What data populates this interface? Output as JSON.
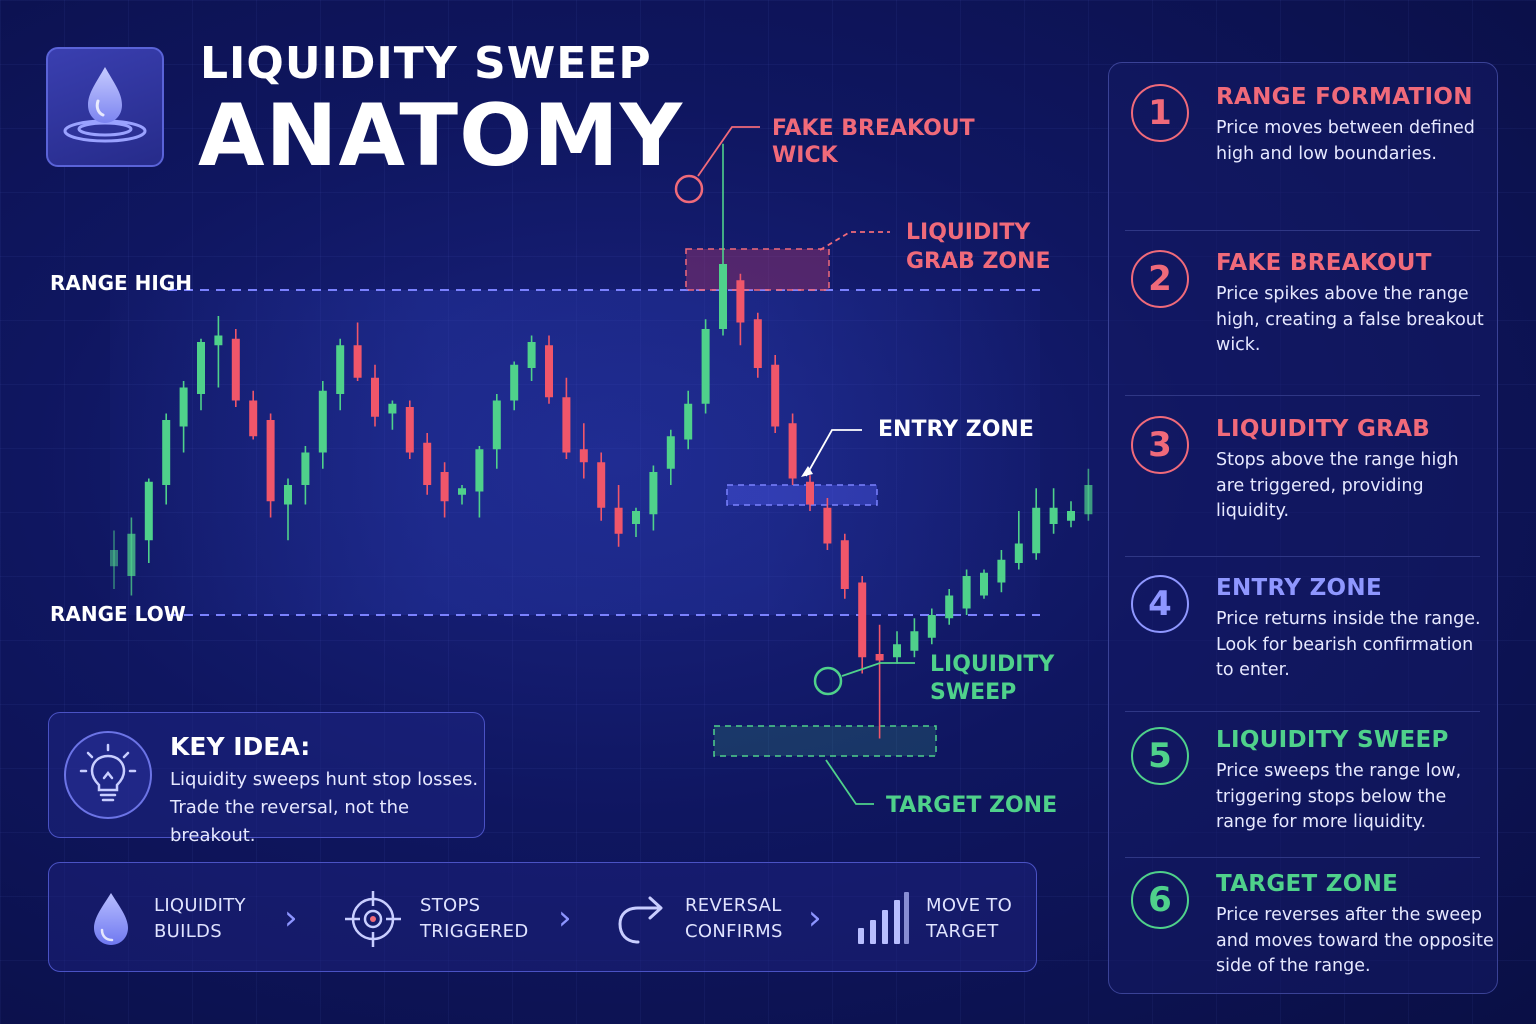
{
  "header": {
    "title_line1": "LIQUIDITY SWEEP",
    "title_line2": "ANATOMY",
    "logo_icon": "water-drop-icon"
  },
  "chart_data": {
    "type": "candlestick",
    "title": "",
    "xlabel": "",
    "ylabel": "",
    "levels": {
      "range_high": "RANGE HIGH",
      "range_low": "RANGE LOW"
    },
    "annotations": {
      "fake_breakout": [
        "FAKE BREAKOUT",
        "WICK"
      ],
      "grab_zone": [
        "LIQUIDITY",
        "GRAB ZONE"
      ],
      "entry_zone": [
        "ENTRY ZONE"
      ],
      "sweep": [
        "LIQUIDITY",
        "SWEEP"
      ],
      "target_zone": [
        "TARGET ZONE"
      ]
    },
    "candles_note": "values in price units where range low = 0 and range high = 100",
    "candles": [
      {
        "o": 15,
        "h": 26,
        "l": 8,
        "c": 20
      },
      {
        "o": 12,
        "h": 30,
        "l": 6,
        "c": 25
      },
      {
        "o": 23,
        "h": 42,
        "l": 16,
        "c": 41
      },
      {
        "o": 40,
        "h": 62,
        "l": 34,
        "c": 60
      },
      {
        "o": 58,
        "h": 72,
        "l": 50,
        "c": 70
      },
      {
        "o": 68,
        "h": 85,
        "l": 63,
        "c": 84
      },
      {
        "o": 83,
        "h": 92,
        "l": 70,
        "c": 86
      },
      {
        "o": 85,
        "h": 88,
        "l": 64,
        "c": 66
      },
      {
        "o": 66,
        "h": 69,
        "l": 54,
        "c": 55
      },
      {
        "o": 60,
        "h": 62,
        "l": 30,
        "c": 35
      },
      {
        "o": 34,
        "h": 42,
        "l": 23,
        "c": 40
      },
      {
        "o": 40,
        "h": 52,
        "l": 34,
        "c": 50
      },
      {
        "o": 50,
        "h": 72,
        "l": 45,
        "c": 69
      },
      {
        "o": 68,
        "h": 85,
        "l": 63,
        "c": 83
      },
      {
        "o": 83,
        "h": 90,
        "l": 72,
        "c": 73
      },
      {
        "o": 73,
        "h": 77,
        "l": 58,
        "c": 61
      },
      {
        "o": 62,
        "h": 66,
        "l": 57,
        "c": 65
      },
      {
        "o": 64,
        "h": 66,
        "l": 48,
        "c": 50
      },
      {
        "o": 53,
        "h": 56,
        "l": 37,
        "c": 40
      },
      {
        "o": 44,
        "h": 47,
        "l": 30,
        "c": 35
      },
      {
        "o": 37,
        "h": 40,
        "l": 34,
        "c": 39
      },
      {
        "o": 38,
        "h": 52,
        "l": 30,
        "c": 51
      },
      {
        "o": 51,
        "h": 68,
        "l": 45,
        "c": 66
      },
      {
        "o": 66,
        "h": 78,
        "l": 63,
        "c": 77
      },
      {
        "o": 76,
        "h": 86,
        "l": 72,
        "c": 84
      },
      {
        "o": 83,
        "h": 86,
        "l": 65,
        "c": 67
      },
      {
        "o": 67,
        "h": 73,
        "l": 48,
        "c": 50
      },
      {
        "o": 51,
        "h": 59,
        "l": 42,
        "c": 47
      },
      {
        "o": 47,
        "h": 50,
        "l": 29,
        "c": 33
      },
      {
        "o": 33,
        "h": 40,
        "l": 21,
        "c": 25
      },
      {
        "o": 28,
        "h": 33,
        "l": 24,
        "c": 32
      },
      {
        "o": 31,
        "h": 46,
        "l": 26,
        "c": 44
      },
      {
        "o": 45,
        "h": 57,
        "l": 40,
        "c": 55
      },
      {
        "o": 54,
        "h": 69,
        "l": 51,
        "c": 65
      },
      {
        "o": 65,
        "h": 91,
        "l": 62,
        "c": 88
      },
      {
        "o": 88,
        "h": 145,
        "l": 86,
        "c": 108
      },
      {
        "o": 103,
        "h": 105,
        "l": 83,
        "c": 90
      },
      {
        "o": 91,
        "h": 93,
        "l": 73,
        "c": 76
      },
      {
        "o": 77,
        "h": 80,
        "l": 56,
        "c": 58
      },
      {
        "o": 59,
        "h": 62,
        "l": 40,
        "c": 42
      },
      {
        "o": 41,
        "h": 43,
        "l": 32,
        "c": 34
      },
      {
        "o": 33,
        "h": 36,
        "l": 20,
        "c": 22
      },
      {
        "o": 23,
        "h": 25,
        "l": 5,
        "c": 8
      },
      {
        "o": 10,
        "h": 12,
        "l": -18,
        "c": -13
      },
      {
        "o": -12,
        "h": -3,
        "l": -38,
        "c": -14
      },
      {
        "o": -13,
        "h": -5,
        "l": -15,
        "c": -9
      },
      {
        "o": -11,
        "h": -1,
        "l": -13,
        "c": -5
      },
      {
        "o": -7,
        "h": 2,
        "l": -9,
        "c": 0
      },
      {
        "o": -1,
        "h": 8,
        "l": -3,
        "c": 6
      },
      {
        "o": 2,
        "h": 14,
        "l": 0,
        "c": 12
      },
      {
        "o": 6,
        "h": 14,
        "l": 5,
        "c": 13
      },
      {
        "o": 10,
        "h": 20,
        "l": 7,
        "c": 17
      },
      {
        "o": 16,
        "h": 32,
        "l": 14,
        "c": 22
      },
      {
        "o": 19,
        "h": 39,
        "l": 17,
        "c": 33
      },
      {
        "o": 28,
        "h": 39,
        "l": 25,
        "c": 33
      },
      {
        "o": 29,
        "h": 35,
        "l": 27,
        "c": 32
      },
      {
        "o": 31,
        "h": 45,
        "l": 29,
        "c": 40
      },
      {
        "o": 41,
        "h": 45,
        "l": 30,
        "c": 34
      }
    ],
    "colors": {
      "bull": "#4fd18b",
      "bear": "#f0566a",
      "grab": "#f06a7a",
      "entry": "#6f78ff",
      "sweep": "#4fd18b"
    }
  },
  "steps": [
    {
      "num": "1",
      "title": "RANGE FORMATION",
      "text": "Price moves between defined high and low boundaries.",
      "color": "#f06a7a"
    },
    {
      "num": "2",
      "title": "FAKE BREAKOUT",
      "text": "Price spikes above the range high, creating a false breakout wick.",
      "color": "#f06a7a"
    },
    {
      "num": "3",
      "title": "LIQUIDITY GRAB",
      "text": "Stops above the range high are triggered, providing liquidity.",
      "color": "#f06a7a"
    },
    {
      "num": "4",
      "title": "ENTRY ZONE",
      "text": "Price returns inside the range. Look for bearish confirmation to enter.",
      "color": "#8f97ff"
    },
    {
      "num": "5",
      "title": "LIQUIDITY SWEEP",
      "text": "Price sweeps the range low, triggering stops below the range for more liquidity.",
      "color": "#4fd18b"
    },
    {
      "num": "6",
      "title": "TARGET ZONE",
      "text": "Price reverses after the sweep and moves toward the opposite side of the range.",
      "color": "#4fd18b"
    }
  ],
  "key_idea": {
    "title": "KEY IDEA:",
    "text": "Liquidity sweeps hunt stop losses. Trade the reversal, not the breakout.",
    "icon": "lightbulb-icon"
  },
  "flow": [
    {
      "line1": "LIQUIDITY",
      "line2": "BUILDS",
      "icon": "water-drop-icon"
    },
    {
      "line1": "STOPS",
      "line2": "TRIGGERED",
      "icon": "crosshair-icon"
    },
    {
      "line1": "REVERSAL",
      "line2": "CONFIRMS",
      "icon": "reverse-arrow-icon"
    },
    {
      "line1": "MOVE TO",
      "line2": "TARGET",
      "icon": "bar-signal-icon"
    }
  ],
  "flow_separator": "›"
}
